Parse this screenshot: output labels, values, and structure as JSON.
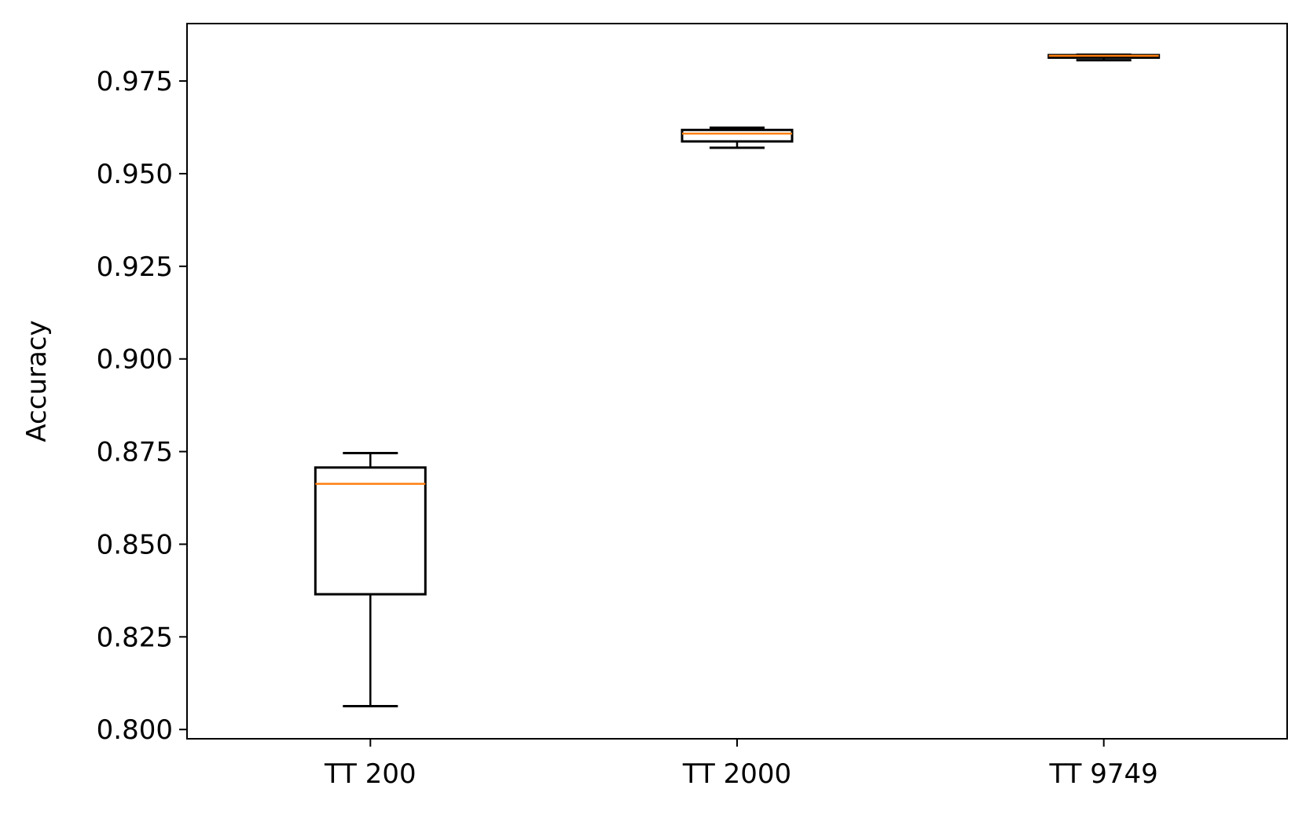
{
  "chart_data": {
    "type": "boxplot",
    "title": "",
    "xlabel": "",
    "ylabel": "Accuracy",
    "ylim": [
      0.7975,
      0.9905
    ],
    "yticks": [
      0.8,
      0.825,
      0.85,
      0.875,
      0.9,
      0.925,
      0.95,
      0.975
    ],
    "ytick_labels": [
      "0.800",
      "0.825",
      "0.850",
      "0.875",
      "0.900",
      "0.925",
      "0.950",
      "0.975"
    ],
    "categories": [
      "TT 200",
      "TT 2000",
      "TT 9749"
    ],
    "boxes": [
      {
        "label": "TT 200",
        "whisker_low": 0.8063,
        "q1": 0.8365,
        "median": 0.8663,
        "q3": 0.8707,
        "whisker_high": 0.8746
      },
      {
        "label": "TT 2000",
        "whisker_low": 0.957,
        "q1": 0.9587,
        "median": 0.9608,
        "q3": 0.9618,
        "whisker_high": 0.9624
      },
      {
        "label": "TT 9749",
        "whisker_low": 0.9806,
        "q1": 0.9813,
        "median": 0.9818,
        "q3": 0.982,
        "whisker_high": 0.9821
      }
    ],
    "grid": false,
    "colors": {
      "box": "#000000",
      "median": "#ff7f0e",
      "axes": "#000000"
    }
  }
}
